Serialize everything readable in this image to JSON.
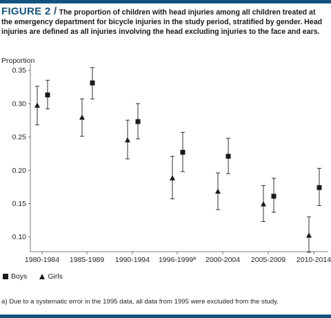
{
  "figure": {
    "label": "FIGURE 2 /",
    "caption": "The proportion of children with head injuries among all children treated at the emergency department for bicycle injuries in the study period, stratified by gender. Head injuries are defined as all injuries involving the head excluding injuries to the face and ears."
  },
  "chart_data": {
    "type": "scatter",
    "ylabel": "Proportion",
    "xlabel": "",
    "ylim": [
      0.08,
      0.36
    ],
    "yticks": [
      "0.10",
      "0.15",
      "0.20",
      "0.25",
      "0.30",
      "0.35"
    ],
    "categories": [
      "1980-1984",
      "1985-1989",
      "1990-1994",
      "1996-1999ª",
      "2000-2004",
      "2005-2009",
      "2010-2014"
    ],
    "series": [
      {
        "name": "Boys",
        "marker": "square",
        "values": [
          0.313,
          0.331,
          0.273,
          0.227,
          0.221,
          0.161,
          0.174
        ],
        "lower": [
          0.292,
          0.307,
          0.247,
          0.198,
          0.195,
          0.137,
          0.147
        ],
        "upper": [
          0.335,
          0.354,
          0.3,
          0.257,
          0.248,
          0.188,
          0.203
        ]
      },
      {
        "name": "Girls",
        "marker": "triangle",
        "values": [
          0.297,
          0.279,
          0.245,
          0.188,
          0.168,
          0.149,
          0.102
        ],
        "lower": [
          0.268,
          0.251,
          0.217,
          0.157,
          0.141,
          0.123,
          0.077
        ],
        "upper": [
          0.326,
          0.307,
          0.275,
          0.221,
          0.196,
          0.177,
          0.13
        ]
      }
    ],
    "legend_position": "bottom-left",
    "grid": false
  },
  "footnote": "a) Due to a systematic error in the 1995 data, all data from 1995 were excluded from the study."
}
